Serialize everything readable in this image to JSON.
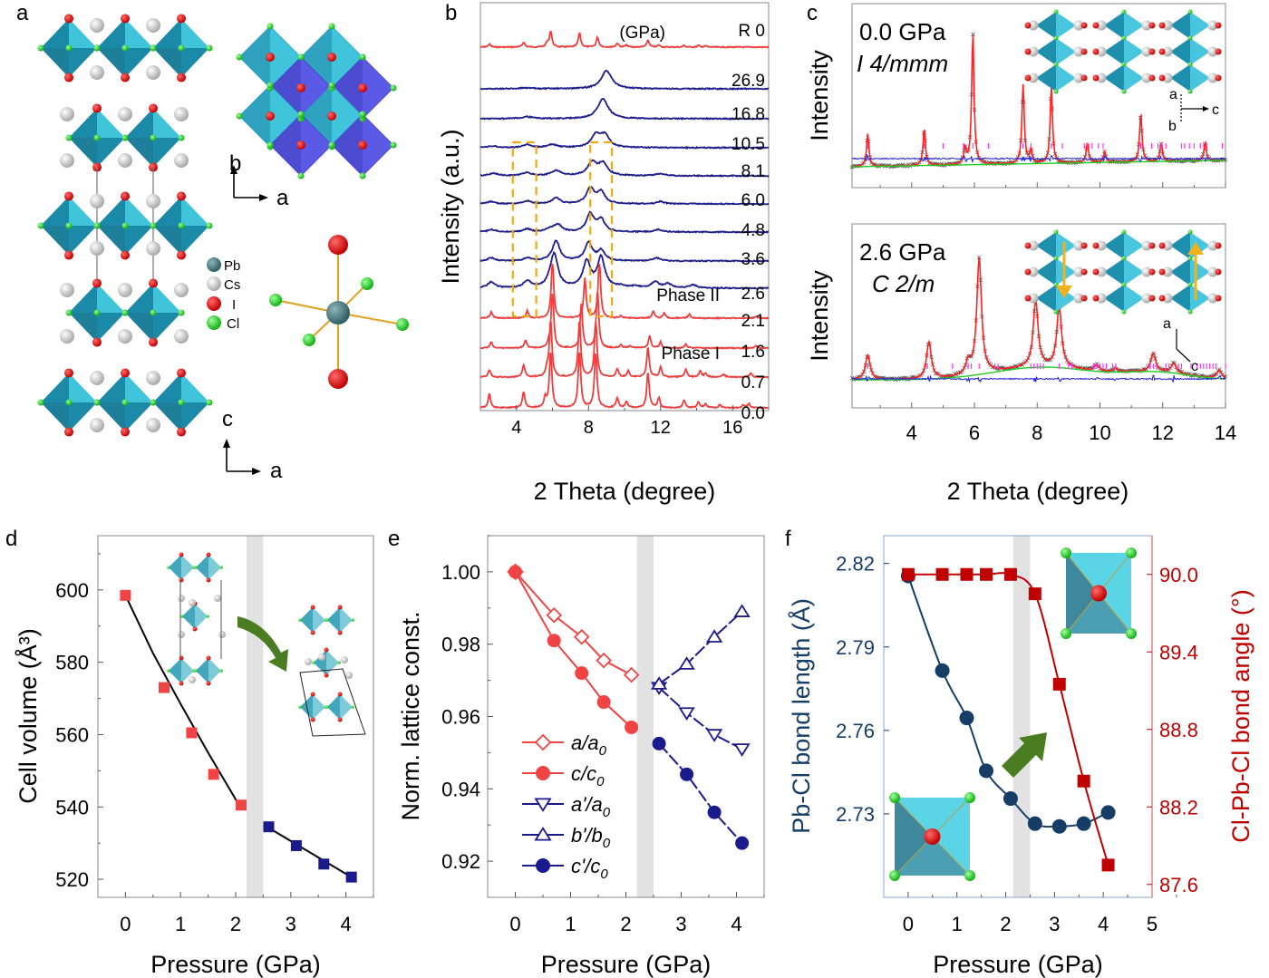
{
  "panel_labels": {
    "a": "a",
    "b": "b",
    "c": "c",
    "d": "d",
    "e": "e",
    "f": "f"
  },
  "panel_a": {
    "legend": [
      {
        "element": "Pb",
        "color": "#3f7a80"
      },
      {
        "element": "Cs",
        "color": "#cfcfcf"
      },
      {
        "element": "I",
        "color": "#e00000"
      },
      {
        "element": "Cl",
        "color": "#22d822"
      }
    ],
    "axes_top": {
      "up": "b",
      "right": "a"
    },
    "axes_bottom": {
      "up": "c",
      "right": "a"
    },
    "colors": {
      "octahedron_light": "#3fc4dc",
      "octahedron_dark": "#1b8aa8",
      "octahedron_blue": "#5050e8"
    }
  },
  "chart_data": [
    {
      "panel": "b",
      "type": "line",
      "title": "",
      "xlabel": "2 Theta (degree)",
      "ylabel": "Intensity (a.u.)",
      "xlim": [
        2,
        18
      ],
      "xticks": [
        4,
        8,
        12,
        16
      ],
      "unit_header": "(GPa)",
      "phase_labels": [
        "Phase II",
        "Phase I"
      ],
      "series": [
        {
          "name": "R 0",
          "phase": "release",
          "color": "#f03c3c",
          "peaks": [
            [
              2.5,
              0.15
            ],
            [
              4.4,
              0.25
            ],
            [
              5.7,
              0.2
            ],
            [
              5.9,
              0.8
            ],
            [
              7.5,
              0.7
            ],
            [
              8.5,
              0.5
            ],
            [
              9.6,
              0.2
            ],
            [
              10.1,
              0.1
            ],
            [
              11.3,
              0.35
            ],
            [
              11.9,
              0.1
            ],
            [
              13.3,
              0.08
            ],
            [
              14.1,
              0.08
            ],
            [
              14.5,
              0.06
            ]
          ]
        },
        {
          "name": "26.9",
          "phase": "II",
          "color": "#1c1c8c",
          "peaks": [
            [
              4.5,
              0.05
            ],
            [
              9.0,
              0.9
            ]
          ]
        },
        {
          "name": "16.8",
          "phase": "II",
          "color": "#1c1c8c",
          "peaks": [
            [
              4.6,
              0.1
            ],
            [
              8.8,
              1.0
            ]
          ]
        },
        {
          "name": "10.5",
          "phase": "II",
          "color": "#1c1c8c",
          "peaks": [
            [
              2.7,
              0.08
            ],
            [
              4.6,
              0.15
            ],
            [
              6.0,
              0.15
            ],
            [
              8.4,
              0.6
            ],
            [
              8.9,
              0.6
            ]
          ]
        },
        {
          "name": "8.1",
          "phase": "II",
          "color": "#1c1c8c",
          "peaks": [
            [
              2.7,
              0.12
            ],
            [
              4.6,
              0.15
            ],
            [
              6.2,
              0.25
            ],
            [
              8.2,
              0.65
            ],
            [
              8.8,
              0.6
            ],
            [
              12.0,
              0.1
            ]
          ]
        },
        {
          "name": "6.0",
          "phase": "II",
          "color": "#1c1c8c",
          "peaks": [
            [
              2.6,
              0.12
            ],
            [
              4.6,
              0.15
            ],
            [
              6.2,
              0.3
            ],
            [
              8.1,
              0.8
            ],
            [
              8.7,
              0.6
            ],
            [
              12.0,
              0.12
            ]
          ]
        },
        {
          "name": "4.8",
          "phase": "II",
          "color": "#1c1c8c",
          "peaks": [
            [
              2.6,
              0.12
            ],
            [
              4.6,
              0.15
            ],
            [
              5.9,
              0.15
            ],
            [
              6.3,
              0.35
            ],
            [
              8.1,
              0.9
            ],
            [
              8.7,
              0.6
            ],
            [
              11.9,
              0.12
            ]
          ]
        },
        {
          "name": "3.6",
          "phase": "II",
          "color": "#1c1c8c",
          "peaks": [
            [
              2.6,
              0.15
            ],
            [
              4.6,
              0.15
            ],
            [
              6.2,
              1.0
            ],
            [
              8.0,
              0.9
            ],
            [
              8.7,
              0.5
            ],
            [
              11.8,
              0.15
            ]
          ]
        },
        {
          "name": "2.6",
          "phase": "II",
          "color": "#1c1c8c",
          "peaks": [
            [
              2.6,
              0.3
            ],
            [
              4.6,
              0.35
            ],
            [
              5.9,
              0.2
            ],
            [
              6.1,
              1.6
            ],
            [
              7.9,
              1.3
            ],
            [
              8.7,
              1.5
            ],
            [
              9.8,
              0.1
            ],
            [
              10.6,
              0.08
            ],
            [
              11.7,
              0.3
            ],
            [
              12.4,
              0.2
            ],
            [
              13.8,
              0.15
            ]
          ]
        },
        {
          "name": "2.1",
          "phase": "I",
          "color": "#f03c3c",
          "peaks": [
            [
              2.6,
              0.3
            ],
            [
              4.6,
              0.35
            ],
            [
              6.0,
              3.0
            ],
            [
              7.8,
              2.0
            ],
            [
              8.6,
              3.0
            ],
            [
              9.8,
              0.12
            ],
            [
              11.6,
              0.35
            ],
            [
              12.2,
              0.25
            ],
            [
              13.6,
              0.2
            ],
            [
              17.3,
              0.1
            ]
          ]
        },
        {
          "name": "1.6",
          "phase": "I",
          "color": "#f03c3c",
          "peaks": [
            [
              2.6,
              0.3
            ],
            [
              4.5,
              0.4
            ],
            [
              5.8,
              0.2
            ],
            [
              6.0,
              3.0
            ],
            [
              7.6,
              2.2
            ],
            [
              8.5,
              3.0
            ],
            [
              9.8,
              0.15
            ],
            [
              10.3,
              0.12
            ],
            [
              11.4,
              0.6
            ],
            [
              12.0,
              0.3
            ],
            [
              13.4,
              0.2
            ],
            [
              17.3,
              0.1
            ]
          ]
        },
        {
          "name": "0.7",
          "phase": "I",
          "color": "#f03c3c",
          "peaks": [
            [
              2.5,
              0.35
            ],
            [
              4.4,
              0.6
            ],
            [
              5.7,
              0.4
            ],
            [
              5.9,
              3.0
            ],
            [
              7.5,
              3.0
            ],
            [
              8.4,
              3.0
            ],
            [
              9.6,
              0.4
            ],
            [
              10.2,
              0.3
            ],
            [
              11.3,
              1.5
            ],
            [
              12.0,
              0.5
            ],
            [
              13.4,
              0.4
            ],
            [
              14.2,
              0.3
            ],
            [
              14.5,
              0.2
            ],
            [
              15.5,
              0.15
            ],
            [
              17.0,
              0.2
            ]
          ]
        },
        {
          "name": "0.0",
          "phase": "I",
          "color": "#f03c3c",
          "peaks": [
            [
              2.5,
              0.7
            ],
            [
              4.4,
              0.8
            ],
            [
              5.6,
              0.5
            ],
            [
              5.9,
              3.0
            ],
            [
              7.5,
              3.0
            ],
            [
              8.4,
              3.0
            ],
            [
              9.6,
              0.5
            ],
            [
              10.1,
              0.3
            ],
            [
              11.3,
              1.8
            ],
            [
              11.9,
              0.5
            ],
            [
              13.3,
              0.4
            ],
            [
              14.1,
              0.3
            ],
            [
              14.5,
              0.2
            ],
            [
              15.3,
              0.15
            ],
            [
              16.6,
              0.15
            ],
            [
              16.9,
              0.2
            ]
          ]
        }
      ],
      "highlight_boxes": [
        [
          3.8,
          5.1
        ],
        [
          8.1,
          9.3
        ]
      ]
    },
    {
      "panel": "c",
      "type": "line",
      "xlabel": "2 Theta (degree)",
      "ylabel": "Intensity",
      "xlim": [
        2.1,
        14
      ],
      "xticks": [
        4,
        6,
        8,
        10,
        12,
        14
      ],
      "subplots": [
        {
          "pressure_label": "0.0 GPa",
          "space_group": "I 4/mmm",
          "axis_labels": {
            "up": "a",
            "right": "c",
            "down": "b"
          },
          "peaks": [
            [
              2.6,
              0.25
            ],
            [
              4.4,
              0.28
            ],
            [
              5.7,
              0.12
            ],
            [
              5.95,
              1.0
            ],
            [
              7.55,
              0.6
            ],
            [
              7.8,
              0.1
            ],
            [
              8.45,
              0.58
            ],
            [
              9.6,
              0.15
            ],
            [
              10.15,
              0.08
            ],
            [
              11.3,
              0.37
            ],
            [
              11.95,
              0.14
            ],
            [
              13.35,
              0.14
            ]
          ],
          "bragg_ticks": [
            2.6,
            4.4,
            5.0,
            5.65,
            5.95,
            6.45,
            7.55,
            7.8,
            8.45,
            8.8,
            9.5,
            9.6,
            9.75,
            9.95,
            10.1,
            11.3,
            11.65,
            11.85,
            11.95,
            12.1,
            12.6,
            12.7,
            12.85,
            13.0,
            13.2,
            13.4,
            13.9
          ]
        },
        {
          "pressure_label": "2.6 GPa",
          "space_group": "C 2/m",
          "axis_labels": {
            "up": "a",
            "right": "c"
          },
          "peaks": [
            [
              2.6,
              0.2
            ],
            [
              4.55,
              0.3
            ],
            [
              5.8,
              0.1
            ],
            [
              6.15,
              0.95
            ],
            [
              7.95,
              0.55
            ],
            [
              8.7,
              0.5
            ],
            [
              9.9,
              0.05
            ],
            [
              10.5,
              0.03
            ],
            [
              11.7,
              0.15
            ],
            [
              12.35,
              0.08
            ],
            [
              13.8,
              0.07
            ]
          ],
          "bragg_ticks": [
            2.6,
            4.5,
            5.3,
            5.8,
            5.9,
            6.15,
            6.65,
            6.75,
            7.8,
            7.9,
            8.0,
            8.1,
            8.2,
            8.7,
            9.0,
            9.1,
            9.8,
            9.9,
            10.0,
            10.1,
            10.2,
            10.4,
            10.5,
            11.6,
            11.7,
            11.8,
            12.1,
            12.2,
            12.5,
            12.6,
            12.9,
            13.1,
            13.2,
            13.3,
            13.4,
            13.5,
            13.6,
            13.7,
            14.0
          ]
        }
      ],
      "colors": {
        "observed": "#333333",
        "calculated": "#ff2020",
        "background": "#22cc22",
        "difference": "#2020dd",
        "bragg": "#ff33ff",
        "arrow": "#f3b21b"
      }
    },
    {
      "panel": "d",
      "type": "scatter",
      "xlabel": "Pressure (GPa)",
      "ylabel": "Cell volume (Å³)",
      "xlim": [
        -0.5,
        4.5
      ],
      "ylim": [
        515,
        615
      ],
      "xticks": [
        0,
        1,
        2,
        3,
        4
      ],
      "yticks": [
        520,
        540,
        560,
        580,
        600
      ],
      "transition_band": [
        2.2,
        2.5
      ],
      "series": [
        {
          "name": "Phase I",
          "color": "#f04444",
          "x": [
            0.0,
            0.7,
            1.2,
            1.6,
            2.1
          ],
          "y": [
            598.5,
            573.0,
            560.5,
            549.0,
            540.5
          ]
        },
        {
          "name": "Phase II",
          "color": "#1a1a8c",
          "x": [
            2.6,
            3.1,
            3.6,
            4.1
          ],
          "y": [
            534.5,
            529.3,
            524.2,
            520.6
          ]
        }
      ],
      "fit_lines": [
        {
          "x": [
            0.0,
            0.5,
            1.0,
            1.5,
            2.05
          ],
          "y": [
            598.5,
            582.5,
            568.5,
            555.0,
            540.8
          ]
        },
        {
          "x": [
            2.6,
            4.1
          ],
          "y": [
            534.2,
            520.6
          ]
        }
      ]
    },
    {
      "panel": "e",
      "type": "line",
      "xlabel": "Pressure (GPa)",
      "ylabel": "Norm. lattice const.",
      "xlim": [
        -0.5,
        4.5
      ],
      "ylim": [
        0.91,
        1.01
      ],
      "xticks": [
        0,
        1,
        2,
        3,
        4
      ],
      "yticks": [
        0.92,
        0.94,
        0.96,
        0.98,
        1.0
      ],
      "transition_band": [
        2.2,
        2.5
      ],
      "legend_position": "lower-left",
      "series": [
        {
          "name": "a/a0",
          "label_main": "a/a",
          "label_sub": "0",
          "color": "#f04444",
          "marker": "diamond-open",
          "x": [
            0,
            0.7,
            1.2,
            1.6,
            2.1
          ],
          "y": [
            1.0,
            0.988,
            0.982,
            0.9755,
            0.9715
          ]
        },
        {
          "name": "c/c0",
          "label_main": "c/c",
          "label_sub": "0",
          "color": "#f04444",
          "marker": "circle-filled",
          "x": [
            0,
            0.7,
            1.2,
            1.6,
            2.1
          ],
          "y": [
            1.0,
            0.981,
            0.972,
            0.964,
            0.957
          ]
        },
        {
          "name": "a'/a0",
          "label_main": "a'/a",
          "label_sub": "0",
          "color": "#1a1a8c",
          "marker": "triangle-down-open",
          "x": [
            2.6,
            3.1,
            3.6,
            4.1
          ],
          "y": [
            0.968,
            0.961,
            0.955,
            0.951
          ]
        },
        {
          "name": "b'/b0",
          "label_main": "b'/b",
          "label_sub": "0",
          "color": "#1a1a8c",
          "marker": "triangle-up-open",
          "x": [
            2.6,
            3.1,
            3.6,
            4.1
          ],
          "y": [
            0.969,
            0.9745,
            0.982,
            0.989
          ]
        },
        {
          "name": "c'/c0",
          "label_main": "c'/c",
          "label_sub": "0",
          "color": "#1a1a8c",
          "marker": "circle-filled",
          "x": [
            2.6,
            3.1,
            3.6,
            4.1
          ],
          "y": [
            0.9525,
            0.944,
            0.9335,
            0.925
          ]
        }
      ]
    },
    {
      "panel": "f",
      "type": "line",
      "xlabel": "Pressure (GPa)",
      "ylabel_left": "Pb-Cl bond length (Å)",
      "ylabel_right": "Cl-Pb-Cl bond angle (°)",
      "xlim": [
        -0.5,
        5
      ],
      "ylim_left": [
        2.7,
        2.83
      ],
      "ylim_right": [
        87.5,
        90.3
      ],
      "xticks": [
        0,
        1,
        2,
        3,
        4,
        5
      ],
      "yticks_left": [
        2.73,
        2.76,
        2.79,
        2.82
      ],
      "yticks_right": [
        87.6,
        88.2,
        88.8,
        89.4,
        90.0
      ],
      "transition_band": [
        2.15,
        2.5
      ],
      "series": [
        {
          "name": "Pb-Cl bond length",
          "axis": "left",
          "color": "#163d66",
          "marker": "circle",
          "x": [
            0,
            0.7,
            1.2,
            1.6,
            2.1,
            2.6,
            3.1,
            3.6,
            4.1
          ],
          "y": [
            2.8155,
            2.7815,
            2.7645,
            2.7455,
            2.7355,
            2.7265,
            2.7255,
            2.7265,
            2.7305
          ]
        },
        {
          "name": "Cl-Pb-Cl bond angle",
          "axis": "right",
          "color": "#c00000",
          "marker": "square",
          "x": [
            0,
            0.7,
            1.2,
            1.6,
            2.1,
            2.6,
            3.1,
            3.6,
            4.1
          ],
          "y": [
            90.0,
            90.0,
            90.0,
            90.0,
            90.0,
            89.85,
            89.15,
            88.4,
            87.75
          ]
        }
      ]
    }
  ]
}
